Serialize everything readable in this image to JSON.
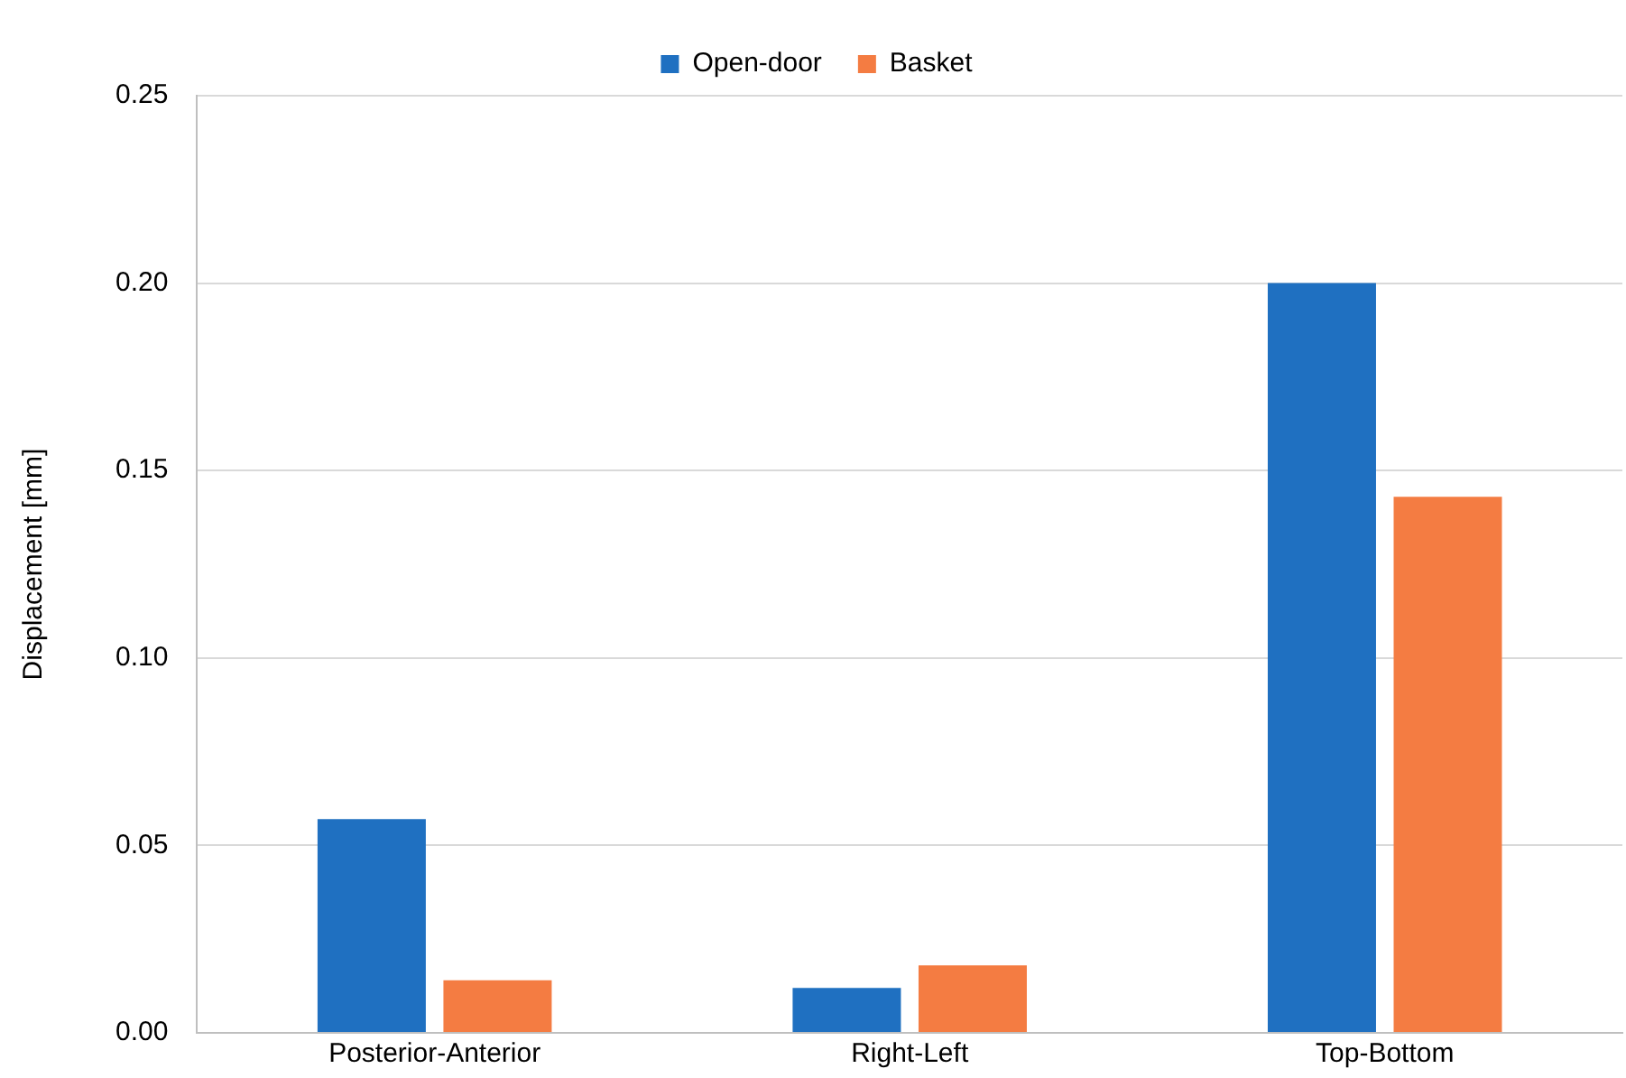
{
  "chart_data": {
    "type": "bar",
    "ylabel": "Displacement [mm]",
    "categories": [
      "Posterior-Anterior",
      "Right-Left",
      "Top-Bottom"
    ],
    "series": [
      {
        "name": "Open-door",
        "color": "#1f70c1",
        "values": [
          0.057,
          0.012,
          0.2
        ]
      },
      {
        "name": "Basket",
        "color": "#f47c42",
        "values": [
          0.014,
          0.018,
          0.143
        ]
      }
    ],
    "ylim": [
      0,
      0.25
    ],
    "yticks": [
      {
        "value": 0,
        "label": "0.00"
      },
      {
        "value": 0.05,
        "label": "0.05"
      },
      {
        "value": 0.1,
        "label": "0.10"
      },
      {
        "value": 0.15,
        "label": "0.15"
      },
      {
        "value": 0.2,
        "label": "0.20"
      },
      {
        "value": 0.25,
        "label": "0.25"
      }
    ],
    "grid": "y",
    "legend": "top"
  }
}
